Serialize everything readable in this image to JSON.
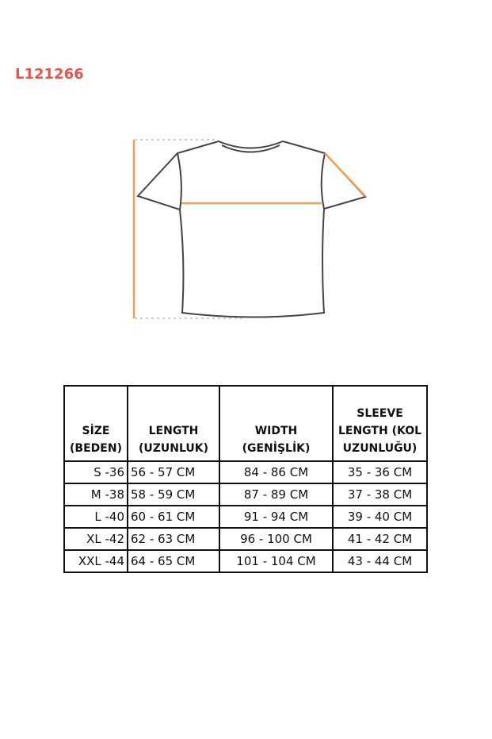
{
  "product_code": "L121266",
  "colors": {
    "code": "#e8544a",
    "measure_line": "#f0a050"
  },
  "table": {
    "headers": [
      [
        "SİZE",
        "(BEDEN)"
      ],
      [
        "LENGTH",
        "(UZUNLUK)"
      ],
      [
        "WIDTH",
        "(GENİŞLİK)"
      ],
      [
        "SLEEVE",
        "LENGTH (KOL",
        "UZUNLUĞU)"
      ]
    ],
    "rows": [
      [
        "S  -36",
        "56 -  57  CM",
        "84 -   86   CM",
        "35 -   36 CM"
      ],
      [
        "M -38",
        "58 -  59  CM",
        "87 -   89   CM",
        "37 -   38 CM"
      ],
      [
        "L -40",
        "60 -  61  CM",
        "91 -   94   CM",
        "39 -   40 CM"
      ],
      [
        "XL -42",
        "62 -  63  CM",
        "96 -   100 CM",
        "41 -   42 CM"
      ],
      [
        "XXL -44",
        "64 -  65  CM",
        "101 -   104 CM",
        "43 -   44 CM"
      ]
    ]
  }
}
